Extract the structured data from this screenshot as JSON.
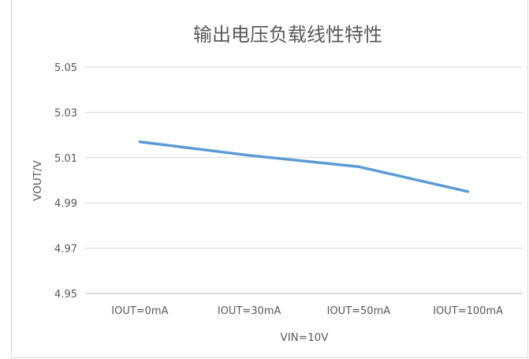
{
  "chart_data": {
    "type": "line",
    "title": "输出电压负载线性特性",
    "xlabel": "VIN=10V",
    "ylabel": "VOUT/V",
    "categories": [
      "IOUT=0mA",
      "IOUT=30mA",
      "IOUT=50mA",
      "IOUT=100mA"
    ],
    "series": [
      {
        "values": [
          5.017,
          5.011,
          5.006,
          4.995
        ],
        "color": "#5b9bd5"
      }
    ],
    "ylim": [
      4.95,
      5.05
    ],
    "yticks": [
      "4.95",
      "4.97",
      "4.99",
      "5.01",
      "5.03",
      "5.05"
    ],
    "grid": true,
    "legend": "none"
  }
}
